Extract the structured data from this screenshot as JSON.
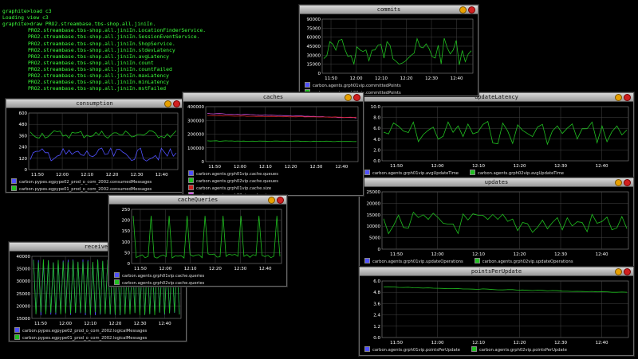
{
  "terminal": {
    "lines": [
      "graphite>load c3",
      "Loading view c3",
      "graphite>draw PRO2.streambase.tbs-shop.all.jiniIn.",
      "PRO2.streambase.tbs-shop.all.jiniIn.LocationFinderService.",
      "PRO2.streambase.tbs-shop.all.jiniIn.SessionEventService.",
      "PRO2.streambase.tbs-shop.all.jiniIn.ShopService.",
      "PRO2.streambase.tbs-shop.all.jiniIn.stdevLatency",
      "PRO2.streambase.tbs-shop.all.jiniIn.avgLatency",
      "PRO2.streambase.tbs-shop.all.jiniIn.count",
      "PRO2.streambase.tbs-shop.all.jiniIn.countFailed",
      "PRO2.streambase.tbs-shop.all.jiniIn.maxLatency",
      "PRO2.streambase.tbs-shop.all.jiniIn.minLatency",
      "PRO2.streambase.tbs-shop.all.jiniIn.mstFailed"
    ]
  },
  "windows": [
    {
      "id": "commits",
      "title": "commits",
      "y_ticks": [
        "90000",
        "75000",
        "60000",
        "45000",
        "30000",
        "15000",
        "0"
      ],
      "x_ticks": [
        "11:50",
        "12:00",
        "12:10",
        "12:20",
        "12:30",
        "12:40"
      ],
      "legend": [
        {
          "label": "carbon.agents.grph01vip.committedPoints",
          "color": "#5050ff"
        },
        {
          "label": "carbon.agents.grph02vip.committedPoints",
          "color": "#20c020"
        }
      ]
    },
    {
      "id": "consumption",
      "title": "consumption",
      "y_ticks": [
        "600",
        "480",
        "360",
        "240",
        "120",
        "0"
      ],
      "x_ticks": [
        "11:50",
        "12:00",
        "12:10",
        "12:20",
        "12:30",
        "12:40"
      ],
      "legend": [
        {
          "label": "carbon.pypes.egpype02_prod_o_com_2002.consumedMessages",
          "color": "#5050ff"
        },
        {
          "label": "carbon.pypes.egpype01_prod_o_com_2002.consumedMessages",
          "color": "#20c020"
        }
      ]
    },
    {
      "id": "caches",
      "title": "caches",
      "y_ticks": [
        "400000",
        "300000",
        "200000",
        "100000",
        "0"
      ],
      "x_ticks": [
        "11:50",
        "12:00",
        "12:10",
        "12:20",
        "12:30",
        "12:40"
      ],
      "legend": [
        {
          "label": "carbon.agents.grph01vip.cache.queues",
          "color": "#5050ff"
        },
        {
          "label": "carbon.agents.grph02vip.cache.queues",
          "color": "#20c020"
        },
        {
          "label": "carbon.agents.grph01vip.cache.size",
          "color": "#d02020"
        },
        {
          "label": "carbon.agents.grph02vip.cache.size",
          "color": "#d050e0"
        }
      ]
    },
    {
      "id": "updateLatency",
      "title": "updateLatency",
      "y_ticks": [
        "10.0",
        "8.0",
        "6.0",
        "4.0",
        "2.0",
        "0.0"
      ],
      "x_ticks": [
        "11:50",
        "12:00",
        "12:10",
        "12:20",
        "12:30",
        "12:40"
      ],
      "legend": [
        {
          "label": "carbon.agents.grph01vip.avgUpdateTime",
          "color": "#5050ff"
        },
        {
          "label": "carbon.agents.grph02vip.avgUpdateTime",
          "color": "#20c020"
        }
      ]
    },
    {
      "id": "cacheQueries",
      "title": "cacheQueries",
      "y_ticks": [
        "250",
        "200",
        "150",
        "100",
        "50",
        "0"
      ],
      "x_ticks": [
        "11:50",
        "12:00",
        "12:10",
        "12:20",
        "12:30",
        "12:40"
      ],
      "legend": [
        {
          "label": "carbon.agents.grph01vip.cache.queries",
          "color": "#5050ff"
        },
        {
          "label": "carbon.agents.grph02vip.cache.queries",
          "color": "#20c020"
        }
      ]
    },
    {
      "id": "updates",
      "title": "updates",
      "y_ticks": [
        "25000",
        "20000",
        "15000",
        "10000",
        "5000",
        "0"
      ],
      "x_ticks": [
        "11:50",
        "12:00",
        "12:10",
        "12:20",
        "12:30",
        "12:40"
      ],
      "legend": [
        {
          "label": "carbon.agents.grph01vip.updateOperations",
          "color": "#5050ff"
        },
        {
          "label": "carbon.agents.grph02vip.updateOperations",
          "color": "#20c020"
        }
      ]
    },
    {
      "id": "receives",
      "title": "receives",
      "y_ticks": [
        "40000",
        "35000",
        "30000",
        "25000",
        "20000",
        "15000"
      ],
      "x_ticks": [
        "11:50",
        "12:00",
        "12:10",
        "12:20",
        "12:30",
        "12:40"
      ],
      "legend": [
        {
          "label": "carbon.pypes.egpype02_prod_o_com_2002.logicalMessages",
          "color": "#5050ff"
        },
        {
          "label": "carbon.pypes.egpype01_prod_o_com_2002.logicalMessages",
          "color": "#20c020"
        }
      ]
    },
    {
      "id": "pointsPerUpdate",
      "title": "pointsPerUpdate",
      "y_ticks": [
        "6.0",
        "4.8",
        "3.6",
        "2.4",
        "1.2",
        "0.0"
      ],
      "x_ticks": [
        "11:50",
        "12:00",
        "12:10",
        "12:20",
        "12:30",
        "12:40"
      ],
      "legend": [
        {
          "label": "carbon.agents.grph01vip.pointsPerUpdate",
          "color": "#5050ff"
        },
        {
          "label": "carbon.agents.grph02vip.pointsPerUpdate",
          "color": "#20c020"
        }
      ]
    }
  ]
}
